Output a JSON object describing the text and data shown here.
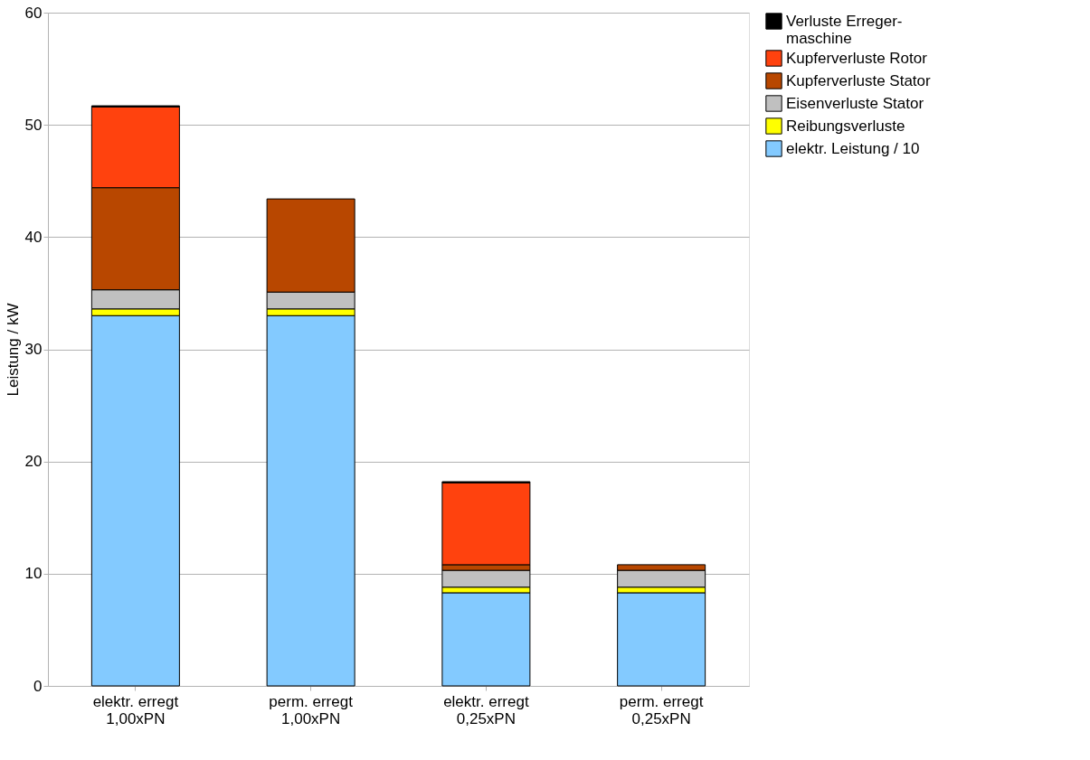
{
  "chart_data": {
    "type": "bar",
    "stacked": true,
    "ylabel": "Leistung / kW",
    "categories": [
      "elektr. erregt\n1,00xPN",
      "perm. erregt\n1,00xPN",
      "elektr. erregt\n0,25xPN",
      "perm. erregt\n0,25xPN"
    ],
    "series": [
      {
        "name": "elektr. Leistung / 10",
        "color": "#83caff",
        "values": [
          33.0,
          33.0,
          8.3,
          8.3
        ]
      },
      {
        "name": "Reibungsverluste",
        "color": "#ffff00",
        "values": [
          0.6,
          0.6,
          0.5,
          0.5
        ]
      },
      {
        "name": "Eisenverluste Stator",
        "color": "#c0c0c0",
        "values": [
          1.7,
          1.5,
          1.5,
          1.5
        ]
      },
      {
        "name": "Kupferverluste Stator",
        "color": "#b84700",
        "values": [
          9.1,
          8.3,
          0.5,
          0.5
        ]
      },
      {
        "name": "Kupferverluste Rotor",
        "color": "#ff420e",
        "values": [
          7.2,
          null,
          7.3,
          null
        ]
      },
      {
        "name": "Verluste Erreger-maschine",
        "color": "#000000",
        "values": [
          0.1,
          null,
          0.1,
          null
        ]
      }
    ],
    "ylim": [
      0,
      60
    ],
    "yticks": [
      0,
      10,
      20,
      30,
      40,
      50,
      60
    ],
    "grid": "y",
    "legend": "right"
  }
}
